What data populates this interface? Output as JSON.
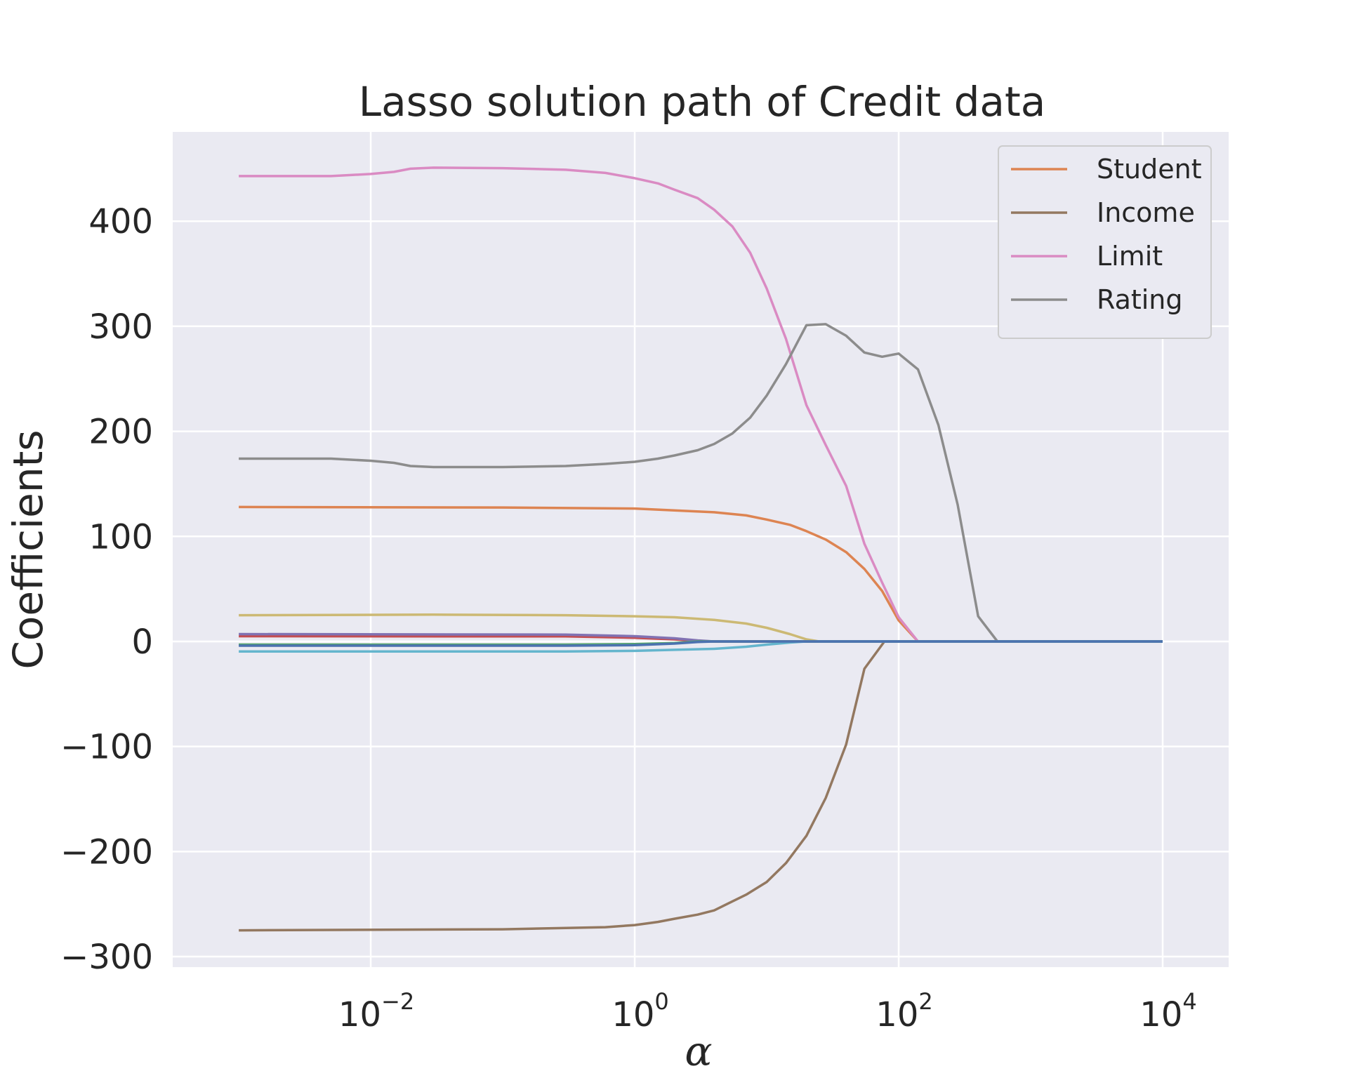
{
  "chart_data": {
    "type": "line",
    "title": "Lasso solution path of Credit data",
    "xlabel": "α",
    "ylabel": "Coefficients",
    "xscale": "log",
    "xlim": [
      0.000316,
      31623
    ],
    "ylim": [
      -310,
      485
    ],
    "grid": true,
    "legend_position": "top-right",
    "colors": {
      "background": "#eaeaf2",
      "grid": "#ffffff",
      "legend_bg": "#eaeaf2",
      "legend_border": "#cccccc"
    },
    "y_ticks": [
      {
        "value": 400,
        "label": "400"
      },
      {
        "value": 300,
        "label": "300"
      },
      {
        "value": 200,
        "label": "200"
      },
      {
        "value": 100,
        "label": "100"
      },
      {
        "value": 0,
        "label": "0"
      },
      {
        "value": -100,
        "label": "−100"
      },
      {
        "value": -200,
        "label": "−200"
      },
      {
        "value": -300,
        "label": "−300"
      }
    ],
    "x_ticks": [
      {
        "value": 0.01,
        "base": "10",
        "exp": "−2"
      },
      {
        "value": 1,
        "base": "10",
        "exp": "0"
      },
      {
        "value": 100,
        "base": "10",
        "exp": "2"
      },
      {
        "value": 10000,
        "base": "10",
        "exp": "4"
      }
    ],
    "series": [
      {
        "name": "Student",
        "color": "#dd8452",
        "legend": true,
        "points": [
          [
            0.001,
            128
          ],
          [
            0.1,
            127.5
          ],
          [
            1,
            126.5
          ],
          [
            4,
            123
          ],
          [
            7,
            120
          ],
          [
            10,
            116
          ],
          [
            15,
            111
          ],
          [
            20,
            105
          ],
          [
            28,
            97
          ],
          [
            40,
            85
          ],
          [
            55,
            69
          ],
          [
            75,
            48
          ],
          [
            100,
            20
          ],
          [
            140,
            0
          ],
          [
            10000,
            0
          ]
        ]
      },
      {
        "name": "Income",
        "color": "#937860",
        "legend": true,
        "points": [
          [
            0.001,
            -275
          ],
          [
            0.1,
            -274
          ],
          [
            0.6,
            -272
          ],
          [
            1,
            -270
          ],
          [
            1.5,
            -267
          ],
          [
            2,
            -264
          ],
          [
            3,
            -260
          ],
          [
            4,
            -256
          ],
          [
            5,
            -250
          ],
          [
            7,
            -241
          ],
          [
            10,
            -229
          ],
          [
            14,
            -211
          ],
          [
            20,
            -185
          ],
          [
            28,
            -149
          ],
          [
            40,
            -98
          ],
          [
            55,
            -26
          ],
          [
            78,
            0
          ],
          [
            10000,
            0
          ]
        ]
      },
      {
        "name": "Limit",
        "color": "#da8bc3",
        "legend": true,
        "points": [
          [
            0.001,
            443
          ],
          [
            0.005,
            443
          ],
          [
            0.01,
            445
          ],
          [
            0.015,
            447
          ],
          [
            0.02,
            450
          ],
          [
            0.03,
            451
          ],
          [
            0.1,
            450.5
          ],
          [
            0.3,
            449
          ],
          [
            0.6,
            446
          ],
          [
            1,
            441
          ],
          [
            1.5,
            436
          ],
          [
            2,
            430
          ],
          [
            3,
            422
          ],
          [
            4,
            411
          ],
          [
            5.5,
            395
          ],
          [
            7.5,
            370
          ],
          [
            10,
            336
          ],
          [
            14,
            288
          ],
          [
            20,
            225
          ],
          [
            28,
            187
          ],
          [
            40,
            148
          ],
          [
            55,
            93
          ],
          [
            75,
            56
          ],
          [
            100,
            23
          ],
          [
            140,
            0
          ],
          [
            10000,
            0
          ]
        ]
      },
      {
        "name": "Rating",
        "color": "#8c8c8c",
        "legend": true,
        "points": [
          [
            0.001,
            174
          ],
          [
            0.005,
            174
          ],
          [
            0.01,
            172
          ],
          [
            0.015,
            170
          ],
          [
            0.02,
            167
          ],
          [
            0.03,
            166
          ],
          [
            0.1,
            166
          ],
          [
            0.3,
            167
          ],
          [
            0.6,
            169
          ],
          [
            1,
            171
          ],
          [
            1.5,
            174
          ],
          [
            2,
            177
          ],
          [
            3,
            182
          ],
          [
            4,
            188
          ],
          [
            5.5,
            198
          ],
          [
            7.5,
            213
          ],
          [
            10,
            234
          ],
          [
            14,
            264
          ],
          [
            20,
            301
          ],
          [
            28,
            302
          ],
          [
            40,
            291
          ],
          [
            55,
            275
          ],
          [
            75,
            271
          ],
          [
            100,
            274
          ],
          [
            140,
            259
          ],
          [
            200,
            206
          ],
          [
            280,
            130
          ],
          [
            400,
            24
          ],
          [
            560,
            0
          ],
          [
            10000,
            0
          ]
        ]
      },
      {
        "name": "",
        "color": "#ccb974",
        "legend": false,
        "points": [
          [
            0.001,
            25
          ],
          [
            0.03,
            25.5
          ],
          [
            0.3,
            25
          ],
          [
            1,
            24
          ],
          [
            2,
            23
          ],
          [
            4,
            20.5
          ],
          [
            7,
            17
          ],
          [
            10,
            13
          ],
          [
            15,
            7
          ],
          [
            20,
            2
          ],
          [
            25,
            0
          ],
          [
            10000,
            0
          ]
        ]
      },
      {
        "name": "",
        "color": "#c44e52",
        "legend": false,
        "points": [
          [
            0.001,
            5
          ],
          [
            0.3,
            4.8
          ],
          [
            1,
            3.5
          ],
          [
            2,
            2
          ],
          [
            3,
            0.5
          ],
          [
            4,
            0
          ],
          [
            10000,
            0
          ]
        ]
      },
      {
        "name": "",
        "color": "#8172b3",
        "legend": false,
        "points": [
          [
            0.001,
            7
          ],
          [
            0.3,
            6.5
          ],
          [
            1,
            5
          ],
          [
            2,
            3
          ],
          [
            3,
            1
          ],
          [
            4,
            0
          ],
          [
            10000,
            0
          ]
        ]
      },
      {
        "name": "",
        "color": "#55a868",
        "legend": false,
        "points": [
          [
            0.001,
            -3
          ],
          [
            0.3,
            -3
          ],
          [
            1,
            -2.5
          ],
          [
            2,
            -1.5
          ],
          [
            3,
            0
          ],
          [
            10000,
            0
          ]
        ]
      },
      {
        "name": "",
        "color": "#64b5cd",
        "legend": false,
        "points": [
          [
            0.001,
            -9.5
          ],
          [
            0.3,
            -9.5
          ],
          [
            1,
            -9
          ],
          [
            2,
            -8
          ],
          [
            4,
            -7
          ],
          [
            7,
            -5
          ],
          [
            10,
            -3
          ],
          [
            15,
            -1
          ],
          [
            20,
            0
          ],
          [
            10000,
            0
          ]
        ]
      },
      {
        "name": "",
        "color": "#4c72b0",
        "legend": false,
        "points": [
          [
            0.001,
            -4
          ],
          [
            0.3,
            -4
          ],
          [
            1,
            -3.5
          ],
          [
            2,
            -2
          ],
          [
            3,
            -0.5
          ],
          [
            4,
            0
          ],
          [
            10000,
            0
          ]
        ]
      }
    ]
  }
}
